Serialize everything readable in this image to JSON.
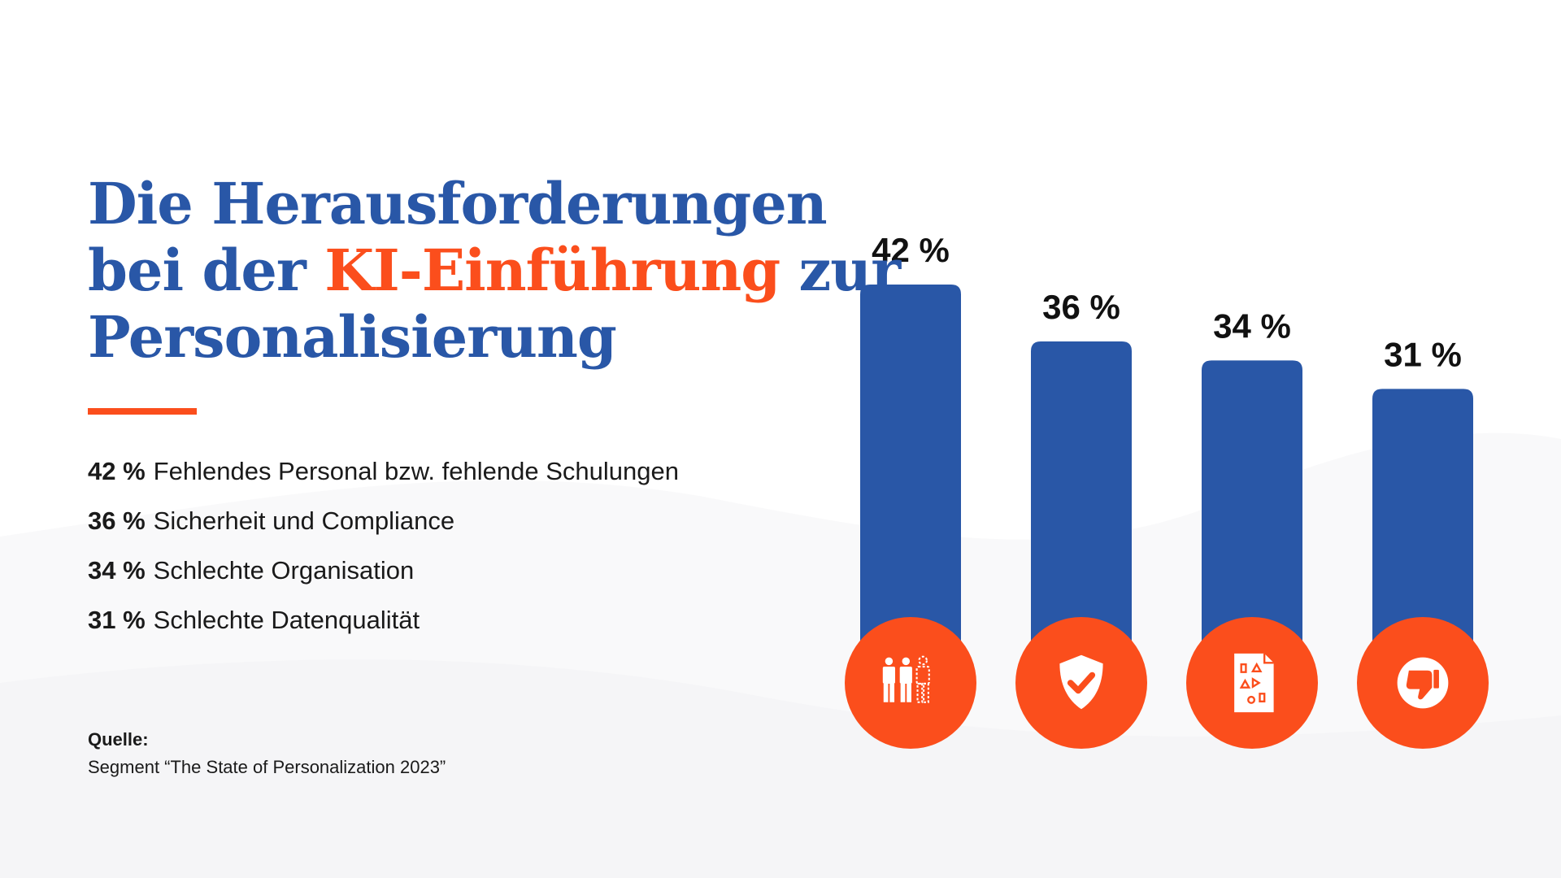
{
  "title": {
    "part1": "Die Herausforderungen",
    "part2": "bei der ",
    "accent": "KI-Einführung",
    "part3": " zur",
    "part4": "Personalisierung"
  },
  "list": [
    {
      "pct": "42 %",
      "text": "Fehlendes Personal bzw. fehlende Schulungen"
    },
    {
      "pct": "36 %",
      "text": "Sicherheit und Compliance"
    },
    {
      "pct": "34 %",
      "text": "Schlechte Organisation"
    },
    {
      "pct": "31 %",
      "text": "Schlechte Datenqualität"
    }
  ],
  "source": {
    "label": "Quelle:",
    "text": "Segment “The State of Personalization 2023”"
  },
  "colors": {
    "bar": "#2957a7",
    "accent": "#fb4e1c",
    "title": "#2957a7"
  },
  "chart_data": {
    "type": "bar",
    "title": "Die Herausforderungen bei der KI-Einführung zur Personalisierung",
    "categories": [
      "Fehlendes Personal bzw. fehlende Schulungen",
      "Sicherheit und Compliance",
      "Schlechte Organisation",
      "Schlechte Datenqualität"
    ],
    "values": [
      42,
      36,
      34,
      31
    ],
    "value_labels": [
      "42 %",
      "36 %",
      "34 %",
      "31 %"
    ],
    "icons": [
      "people-icon",
      "shield-check-icon",
      "scattered-shapes-document-icon",
      "thumbs-down-icon"
    ],
    "unit": "%",
    "xlabel": "",
    "ylabel": "",
    "ylim": [
      0,
      42
    ],
    "grid": false
  }
}
